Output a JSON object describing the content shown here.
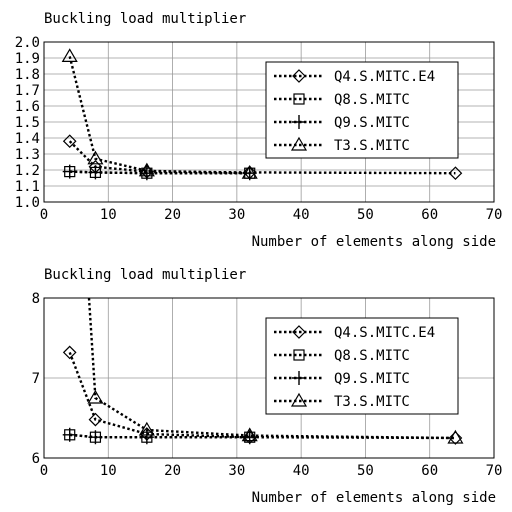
{
  "chart_data": [
    {
      "type": "line",
      "title": "Buckling load multiplier",
      "xlabel": "Number of elements along side",
      "ylabel": "",
      "xlim": [
        0,
        70
      ],
      "ylim": [
        1.0,
        2.0
      ],
      "xticks": [
        "0",
        "10",
        "20",
        "30",
        "40",
        "50",
        "60",
        "70"
      ],
      "yticks": [
        "1.0",
        "1.1",
        "1.2",
        "1.3",
        "1.4",
        "1.5",
        "1.6",
        "1.7",
        "1.8",
        "1.9",
        "2.0"
      ],
      "grid": true,
      "legend_position": "right",
      "series": [
        {
          "name": "Q4.S.MITC.E4",
          "marker": "diamond",
          "x": [
            4,
            8,
            16,
            32,
            64
          ],
          "y": [
            1.38,
            1.22,
            1.19,
            1.185,
            1.18
          ]
        },
        {
          "name": "Q8.S.MITC",
          "marker": "square",
          "x": [
            4,
            8,
            16,
            32
          ],
          "y": [
            1.19,
            1.185,
            1.18,
            1.18
          ]
        },
        {
          "name": "Q9.S.MITC",
          "marker": "plus",
          "x": [
            4,
            8,
            16,
            32
          ],
          "y": [
            1.19,
            1.185,
            1.18,
            1.18
          ]
        },
        {
          "name": "T3.S.MITC",
          "marker": "triangle",
          "x": [
            4,
            8,
            16,
            32
          ],
          "y": [
            1.91,
            1.27,
            1.195,
            1.18
          ]
        }
      ]
    },
    {
      "type": "line",
      "title": "Buckling load multiplier",
      "xlabel": "Number of elements along side",
      "ylabel": "",
      "xlim": [
        0,
        70
      ],
      "ylim": [
        6,
        8
      ],
      "xticks": [
        "0",
        "10",
        "20",
        "30",
        "40",
        "50",
        "60",
        "70"
      ],
      "yticks": [
        "6",
        "7",
        "8"
      ],
      "grid": true,
      "legend_position": "right",
      "series": [
        {
          "name": "Q4.S.MITC.E4",
          "marker": "diamond",
          "x": [
            4,
            8,
            16,
            32,
            64
          ],
          "y": [
            7.32,
            6.48,
            6.3,
            6.26,
            6.25
          ]
        },
        {
          "name": "Q8.S.MITC",
          "marker": "square",
          "x": [
            4,
            8,
            16,
            32
          ],
          "y": [
            6.29,
            6.26,
            6.26,
            6.26
          ]
        },
        {
          "name": "Q9.S.MITC",
          "marker": "plus",
          "x": [
            4,
            8,
            16,
            32
          ],
          "y": [
            6.29,
            6.26,
            6.26,
            6.26
          ]
        },
        {
          "name": "T3.S.MITC",
          "marker": "triangle",
          "x": [
            7,
            8,
            16,
            32,
            64
          ],
          "y": [
            8.0,
            6.75,
            6.35,
            6.28,
            6.25
          ]
        }
      ]
    }
  ]
}
